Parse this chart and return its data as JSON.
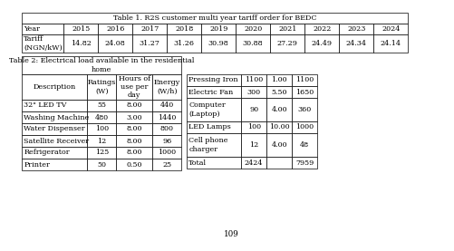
{
  "table1_title": "Table 1. R2S customer multi year tariff order for BEDC",
  "table1_headers": [
    "Year",
    "2015",
    "2016",
    "2017",
    "2018",
    "2019",
    "2020",
    "2021",
    "2022",
    "2023",
    "2024"
  ],
  "table1_row_label": "Tariff\n(NGN/kW)",
  "table1_values": [
    "14.82",
    "24.08",
    "31.27",
    "31.26",
    "30.98",
    "30.88",
    "27.29",
    "24.49",
    "24.34",
    "24.14"
  ],
  "table2_title": "Table 2: Electrical load available in the residential\nhome",
  "table2_headers": [
    "Description",
    "Ratings\n(W)",
    "Hours of\nuse per\nday",
    "Energy\n(W/h)"
  ],
  "table2_rows": [
    [
      "32\" LED TV",
      "55",
      "8.00",
      "440"
    ],
    [
      "Washing Machine",
      "480",
      "3.00",
      "1440"
    ],
    [
      "Water Dispenser",
      "100",
      "8.00",
      "800"
    ],
    [
      "Satellite Receiver",
      "12",
      "8.00",
      "96"
    ],
    [
      "Refrigerator",
      "125",
      "8.00",
      "1000"
    ],
    [
      "Printer",
      "50",
      "0.50",
      "25"
    ]
  ],
  "table2b_rows": [
    [
      "Pressing Iron",
      "1100",
      "1.00",
      "1100"
    ],
    [
      "Electric Fan",
      "300",
      "5.50",
      "1650"
    ],
    [
      "Computer\n(Laptop)",
      "90",
      "4.00",
      "360"
    ],
    [
      "LED Lamps",
      "100",
      "10.00",
      "1000"
    ],
    [
      "Cell phone\ncharger",
      "12",
      "4.00",
      "48"
    ],
    [
      "Total",
      "2424",
      "",
      "7959"
    ]
  ],
  "page_number": "109",
  "bg_color": "#ffffff",
  "border_color": "#000000",
  "font_size": 5.8
}
